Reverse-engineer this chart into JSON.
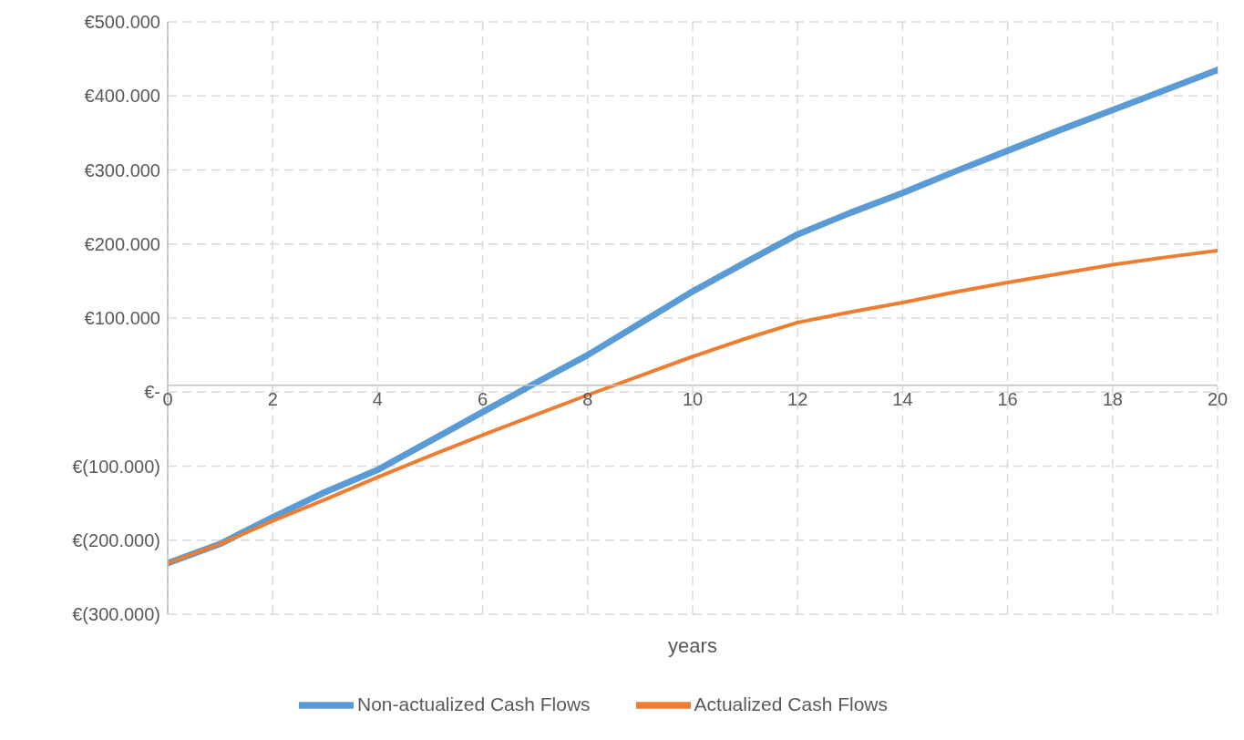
{
  "chart_data": {
    "type": "line",
    "xlabel": "years",
    "x": [
      0,
      1,
      2,
      3,
      4,
      5,
      6,
      7,
      8,
      9,
      10,
      11,
      12,
      13,
      14,
      15,
      16,
      17,
      18,
      19,
      20
    ],
    "series": [
      {
        "name": "Non-actualized Cash Flows",
        "color": "#5b9bd5",
        "values": [
          -231000,
          -205000,
          -169000,
          -135000,
          -105000,
          -66000,
          -27000,
          12000,
          50000,
          93000,
          136000,
          175000,
          213000,
          242000,
          269000,
          298000,
          326000,
          354000,
          381000,
          408000,
          435000
        ]
      },
      {
        "name": "Actualized Cash Flows",
        "color": "#ed7d31",
        "values": [
          -231000,
          -205000,
          -174000,
          -145000,
          -115000,
          -86000,
          -58000,
          -31000,
          -4000,
          22000,
          48000,
          72000,
          94000,
          108000,
          121000,
          135000,
          148000,
          160000,
          172000,
          182000,
          191000
        ]
      }
    ],
    "xlim": [
      0,
      20
    ],
    "xticks": [
      0,
      2,
      4,
      6,
      8,
      10,
      12,
      14,
      16,
      18,
      20
    ],
    "ylim": [
      -300000,
      500000
    ],
    "yticks": [
      {
        "value": -300000,
        "label": "€(300.000)"
      },
      {
        "value": -200000,
        "label": "€(200.000)"
      },
      {
        "value": -100000,
        "label": "€(100.000)"
      },
      {
        "value": 0,
        "label": "€-"
      },
      {
        "value": 100000,
        "label": "€100.000"
      },
      {
        "value": 200000,
        "label": "€200.000"
      },
      {
        "value": 300000,
        "label": "€300.000"
      },
      {
        "value": 400000,
        "label": "€400.000"
      },
      {
        "value": 500000,
        "label": "€500.000"
      }
    ],
    "grid": true,
    "legend": "bottom",
    "marker": "none",
    "line_style": "solid"
  }
}
